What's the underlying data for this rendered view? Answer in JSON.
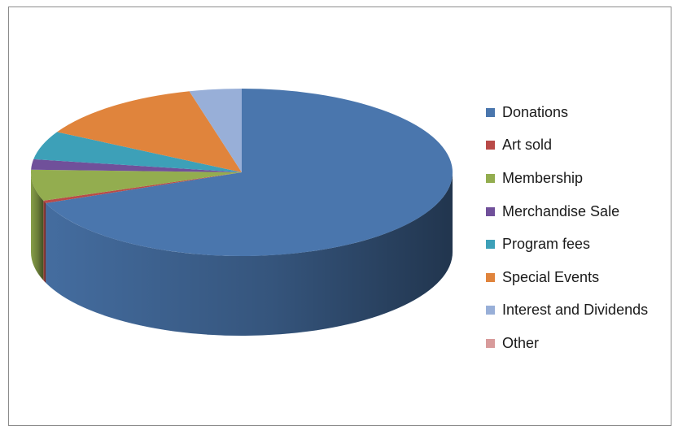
{
  "chart_data": {
    "type": "pie",
    "title": "",
    "categories": [
      "Donations",
      "Art sold",
      "Membership",
      "Merchandise Sale",
      "Program fees",
      "Special Events",
      "Interest and Dividends",
      "Other"
    ],
    "values": [
      69.0,
      0.5,
      6.0,
      2.0,
      5.5,
      13.0,
      4.0,
      0.0
    ],
    "colors": [
      "#4a76ad",
      "#b94a48",
      "#93ad4f",
      "#70509a",
      "#3da0b8",
      "#e0843c",
      "#98afd8",
      "#d89b9b"
    ],
    "style": "3d",
    "legend_position": "right",
    "legend": [
      {
        "label": "Donations",
        "color": "#4a76ad"
      },
      {
        "label": "Art sold",
        "color": "#b94a48"
      },
      {
        "label": "Membership",
        "color": "#93ad4f"
      },
      {
        "label": "Merchandise Sale",
        "color": "#70509a"
      },
      {
        "label": "Program fees",
        "color": "#3da0b8"
      },
      {
        "label": "Special Events",
        "color": "#e0843c"
      },
      {
        "label": "Interest and Dividends",
        "color": "#98afd8"
      },
      {
        "label": "Other",
        "color": "#d89b9b"
      }
    ]
  }
}
